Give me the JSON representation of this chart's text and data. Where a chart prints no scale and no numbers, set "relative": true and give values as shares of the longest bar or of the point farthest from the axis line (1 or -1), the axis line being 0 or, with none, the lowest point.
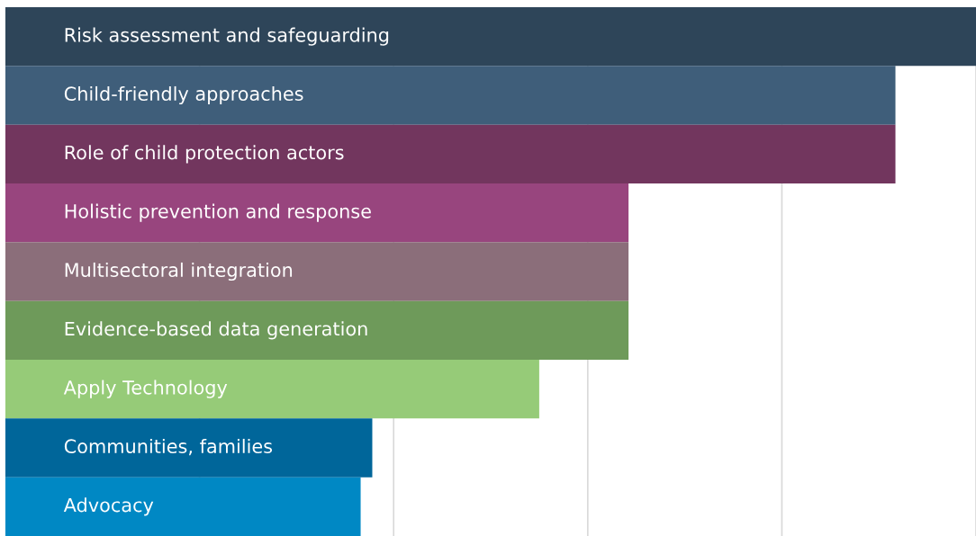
{
  "chart_data": {
    "type": "bar",
    "orientation": "horizontal",
    "relative": true,
    "grid": "x",
    "categories": [
      "Risk assessment and safeguarding",
      "Child-friendly approaches",
      "Role of child protection actors",
      "Holistic prevention and response",
      "Multisectoral integration",
      "Evidence-based data generation",
      "Apply Technology",
      "Communities, families",
      "Advocacy"
    ],
    "values": [
      1,
      0.917,
      0.917,
      0.642,
      0.642,
      0.642,
      0.55,
      0.378,
      0.366
    ],
    "colors": [
      "#2e4559",
      "#3f5e7a",
      "#72365e",
      "#98457e",
      "#8b6e7a",
      "#6e9a5a",
      "#96cb78",
      "#00669a",
      "#0088c4"
    ]
  }
}
